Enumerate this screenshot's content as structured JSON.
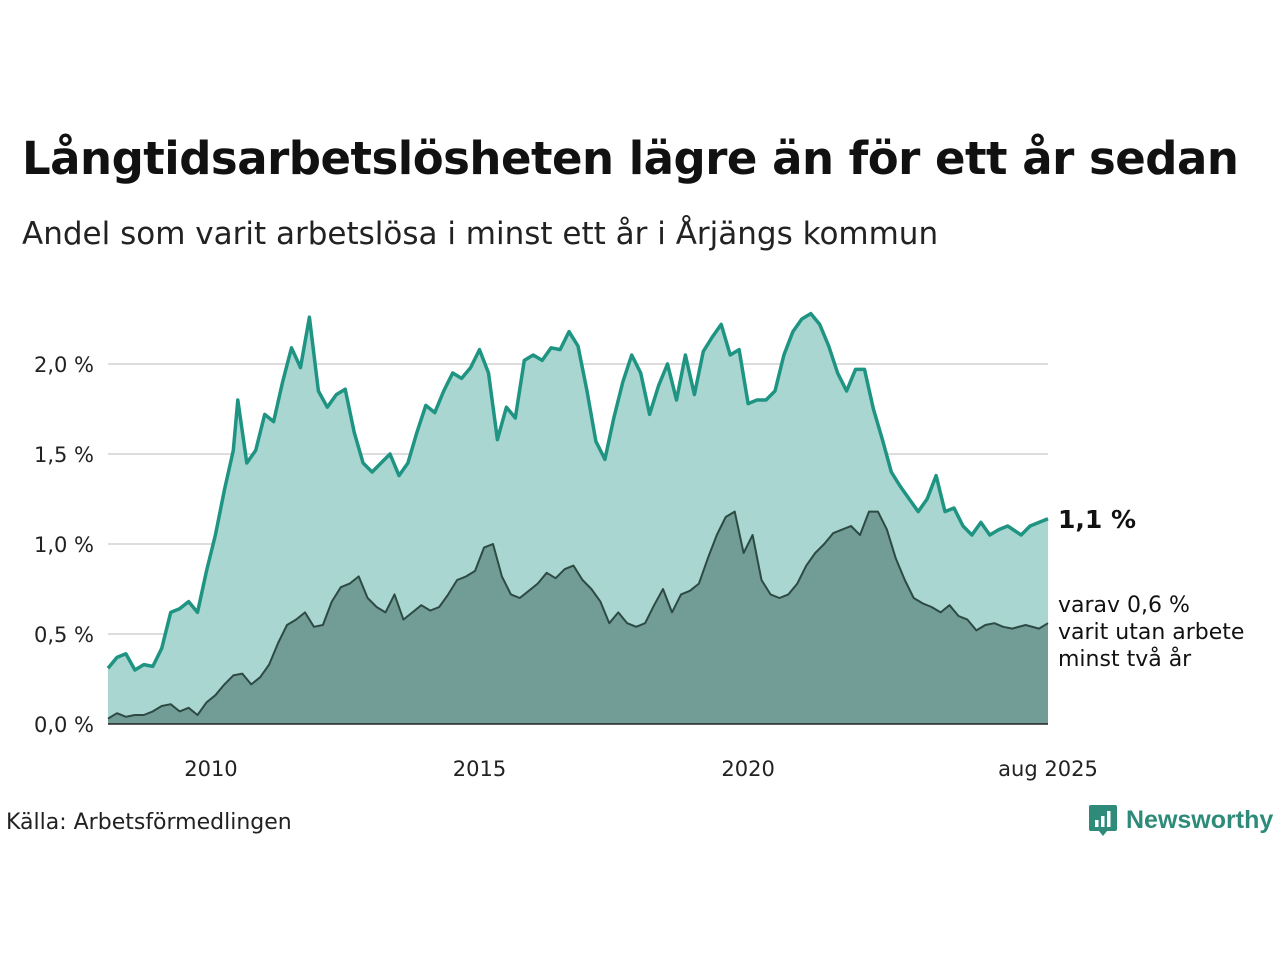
{
  "title": "Långtidsarbetslösheten lägre än för ett år sedan",
  "subtitle": "Andel som varit arbetslösa i minst ett år i Årjängs kommun",
  "source": "Källa: Arbetsförmedlingen",
  "logo_text": "Newsworthy",
  "colors": {
    "long_term_line": "#1f9483",
    "long_term_fill": "#a4d4ce",
    "two_year_line": "#2d4a43",
    "two_year_fill": "#6f9a94",
    "grid": "#dddddd",
    "brand": "#2e8b7a"
  },
  "chart_data": {
    "type": "area",
    "x_start": "2008-02",
    "x_end": "2025-08",
    "ylim": [
      0,
      2.4
    ],
    "y_ticks": [
      {
        "value": 0.0,
        "label": "0,0 %"
      },
      {
        "value": 0.5,
        "label": "0,5 %"
      },
      {
        "value": 1.0,
        "label": "1,0 %"
      },
      {
        "value": 1.5,
        "label": "1,5 %"
      },
      {
        "value": 2.0,
        "label": "2,0 %"
      }
    ],
    "x_ticks": [
      {
        "date": "2010-01",
        "label": "2010"
      },
      {
        "date": "2015-01",
        "label": "2015"
      },
      {
        "date": "2020-01",
        "label": "2020"
      },
      {
        "date": "2025-08",
        "label": "aug 2025"
      }
    ],
    "grid": true,
    "series": [
      {
        "points": [
          [
            "2008-02",
            0.31
          ],
          [
            "2008-04",
            0.37
          ],
          [
            "2008-06",
            0.39
          ],
          [
            "2008-08",
            0.3
          ],
          [
            "2008-10",
            0.33
          ],
          [
            "2008-12",
            0.32
          ],
          [
            "2009-02",
            0.42
          ],
          [
            "2009-04",
            0.62
          ],
          [
            "2009-06",
            0.64
          ],
          [
            "2009-08",
            0.68
          ],
          [
            "2009-10",
            0.62
          ],
          [
            "2009-12",
            0.85
          ],
          [
            "2010-02",
            1.05
          ],
          [
            "2010-04",
            1.3
          ],
          [
            "2010-06",
            1.52
          ],
          [
            "2010-07",
            1.8
          ],
          [
            "2010-09",
            1.45
          ],
          [
            "2010-11",
            1.52
          ],
          [
            "2011-01",
            1.72
          ],
          [
            "2011-03",
            1.68
          ],
          [
            "2011-05",
            1.9
          ],
          [
            "2011-07",
            2.09
          ],
          [
            "2011-09",
            1.98
          ],
          [
            "2011-11",
            2.26
          ],
          [
            "2012-01",
            1.85
          ],
          [
            "2012-03",
            1.76
          ],
          [
            "2012-05",
            1.83
          ],
          [
            "2012-07",
            1.86
          ],
          [
            "2012-09",
            1.62
          ],
          [
            "2012-11",
            1.45
          ],
          [
            "2013-01",
            1.4
          ],
          [
            "2013-03",
            1.45
          ],
          [
            "2013-05",
            1.5
          ],
          [
            "2013-07",
            1.38
          ],
          [
            "2013-09",
            1.45
          ],
          [
            "2013-11",
            1.62
          ],
          [
            "2014-01",
            1.77
          ],
          [
            "2014-03",
            1.73
          ],
          [
            "2014-05",
            1.85
          ],
          [
            "2014-07",
            1.95
          ],
          [
            "2014-09",
            1.92
          ],
          [
            "2014-11",
            1.98
          ],
          [
            "2015-01",
            2.08
          ],
          [
            "2015-03",
            1.95
          ],
          [
            "2015-05",
            1.58
          ],
          [
            "2015-07",
            1.76
          ],
          [
            "2015-09",
            1.7
          ],
          [
            "2015-11",
            2.02
          ],
          [
            "2016-01",
            2.05
          ],
          [
            "2016-03",
            2.02
          ],
          [
            "2016-05",
            2.09
          ],
          [
            "2016-07",
            2.08
          ],
          [
            "2016-09",
            2.18
          ],
          [
            "2016-11",
            2.1
          ],
          [
            "2017-01",
            1.85
          ],
          [
            "2017-03",
            1.57
          ],
          [
            "2017-05",
            1.47
          ],
          [
            "2017-07",
            1.7
          ],
          [
            "2017-09",
            1.9
          ],
          [
            "2017-11",
            2.05
          ],
          [
            "2018-01",
            1.95
          ],
          [
            "2018-03",
            1.72
          ],
          [
            "2018-05",
            1.88
          ],
          [
            "2018-07",
            2.0
          ],
          [
            "2018-09",
            1.8
          ],
          [
            "2018-11",
            2.05
          ],
          [
            "2019-01",
            1.83
          ],
          [
            "2019-03",
            2.07
          ],
          [
            "2019-05",
            2.15
          ],
          [
            "2019-07",
            2.22
          ],
          [
            "2019-09",
            2.05
          ],
          [
            "2019-11",
            2.08
          ],
          [
            "2020-01",
            1.78
          ],
          [
            "2020-03",
            1.8
          ],
          [
            "2020-05",
            1.8
          ],
          [
            "2020-07",
            1.85
          ],
          [
            "2020-09",
            2.05
          ],
          [
            "2020-11",
            2.18
          ],
          [
            "2021-01",
            2.25
          ],
          [
            "2021-03",
            2.28
          ],
          [
            "2021-05",
            2.22
          ],
          [
            "2021-07",
            2.1
          ],
          [
            "2021-09",
            1.95
          ],
          [
            "2021-11",
            1.85
          ],
          [
            "2022-01",
            1.97
          ],
          [
            "2022-03",
            1.97
          ],
          [
            "2022-05",
            1.75
          ],
          [
            "2022-07",
            1.58
          ],
          [
            "2022-09",
            1.4
          ],
          [
            "2022-11",
            1.32
          ],
          [
            "2023-01",
            1.25
          ],
          [
            "2023-03",
            1.18
          ],
          [
            "2023-05",
            1.25
          ],
          [
            "2023-07",
            1.38
          ],
          [
            "2023-09",
            1.18
          ],
          [
            "2023-11",
            1.2
          ],
          [
            "2024-01",
            1.1
          ],
          [
            "2024-03",
            1.05
          ],
          [
            "2024-05",
            1.12
          ],
          [
            "2024-07",
            1.05
          ],
          [
            "2024-09",
            1.08
          ],
          [
            "2024-11",
            1.1
          ],
          [
            "2025-02",
            1.05
          ],
          [
            "2025-04",
            1.1
          ],
          [
            "2025-06",
            1.12
          ],
          [
            "2025-08",
            1.14
          ]
        ]
      },
      {
        "points": [
          [
            "2008-02",
            0.03
          ],
          [
            "2008-04",
            0.06
          ],
          [
            "2008-06",
            0.04
          ],
          [
            "2008-08",
            0.05
          ],
          [
            "2008-10",
            0.05
          ],
          [
            "2008-12",
            0.07
          ],
          [
            "2009-02",
            0.1
          ],
          [
            "2009-04",
            0.11
          ],
          [
            "2009-06",
            0.07
          ],
          [
            "2009-08",
            0.09
          ],
          [
            "2009-10",
            0.05
          ],
          [
            "2009-12",
            0.12
          ],
          [
            "2010-02",
            0.16
          ],
          [
            "2010-04",
            0.22
          ],
          [
            "2010-06",
            0.27
          ],
          [
            "2010-08",
            0.28
          ],
          [
            "2010-10",
            0.22
          ],
          [
            "2010-12",
            0.26
          ],
          [
            "2011-02",
            0.33
          ],
          [
            "2011-04",
            0.45
          ],
          [
            "2011-06",
            0.55
          ],
          [
            "2011-08",
            0.58
          ],
          [
            "2011-10",
            0.62
          ],
          [
            "2011-12",
            0.54
          ],
          [
            "2012-02",
            0.55
          ],
          [
            "2012-04",
            0.68
          ],
          [
            "2012-06",
            0.76
          ],
          [
            "2012-08",
            0.78
          ],
          [
            "2012-10",
            0.82
          ],
          [
            "2012-12",
            0.7
          ],
          [
            "2013-02",
            0.65
          ],
          [
            "2013-04",
            0.62
          ],
          [
            "2013-06",
            0.72
          ],
          [
            "2013-08",
            0.58
          ],
          [
            "2013-10",
            0.62
          ],
          [
            "2013-12",
            0.66
          ],
          [
            "2014-02",
            0.63
          ],
          [
            "2014-04",
            0.65
          ],
          [
            "2014-06",
            0.72
          ],
          [
            "2014-08",
            0.8
          ],
          [
            "2014-10",
            0.82
          ],
          [
            "2014-12",
            0.85
          ],
          [
            "2015-02",
            0.98
          ],
          [
            "2015-04",
            1.0
          ],
          [
            "2015-06",
            0.82
          ],
          [
            "2015-08",
            0.72
          ],
          [
            "2015-10",
            0.7
          ],
          [
            "2015-12",
            0.74
          ],
          [
            "2016-02",
            0.78
          ],
          [
            "2016-04",
            0.84
          ],
          [
            "2016-06",
            0.81
          ],
          [
            "2016-08",
            0.86
          ],
          [
            "2016-10",
            0.88
          ],
          [
            "2016-12",
            0.8
          ],
          [
            "2017-02",
            0.75
          ],
          [
            "2017-04",
            0.68
          ],
          [
            "2017-06",
            0.56
          ],
          [
            "2017-08",
            0.62
          ],
          [
            "2017-10",
            0.56
          ],
          [
            "2017-12",
            0.54
          ],
          [
            "2018-02",
            0.56
          ],
          [
            "2018-04",
            0.66
          ],
          [
            "2018-06",
            0.75
          ],
          [
            "2018-08",
            0.62
          ],
          [
            "2018-10",
            0.72
          ],
          [
            "2018-12",
            0.74
          ],
          [
            "2019-02",
            0.78
          ],
          [
            "2019-04",
            0.92
          ],
          [
            "2019-06",
            1.05
          ],
          [
            "2019-08",
            1.15
          ],
          [
            "2019-10",
            1.18
          ],
          [
            "2019-12",
            0.95
          ],
          [
            "2020-02",
            1.05
          ],
          [
            "2020-04",
            0.8
          ],
          [
            "2020-06",
            0.72
          ],
          [
            "2020-08",
            0.7
          ],
          [
            "2020-10",
            0.72
          ],
          [
            "2020-12",
            0.78
          ],
          [
            "2021-02",
            0.88
          ],
          [
            "2021-04",
            0.95
          ],
          [
            "2021-06",
            1.0
          ],
          [
            "2021-08",
            1.06
          ],
          [
            "2021-10",
            1.08
          ],
          [
            "2021-12",
            1.1
          ],
          [
            "2022-02",
            1.05
          ],
          [
            "2022-04",
            1.18
          ],
          [
            "2022-06",
            1.18
          ],
          [
            "2022-08",
            1.08
          ],
          [
            "2022-10",
            0.92
          ],
          [
            "2022-12",
            0.8
          ],
          [
            "2023-02",
            0.7
          ],
          [
            "2023-04",
            0.67
          ],
          [
            "2023-06",
            0.65
          ],
          [
            "2023-08",
            0.62
          ],
          [
            "2023-10",
            0.66
          ],
          [
            "2023-12",
            0.6
          ],
          [
            "2024-02",
            0.58
          ],
          [
            "2024-04",
            0.52
          ],
          [
            "2024-06",
            0.55
          ],
          [
            "2024-08",
            0.56
          ],
          [
            "2024-10",
            0.54
          ],
          [
            "2024-12",
            0.53
          ],
          [
            "2025-03",
            0.55
          ],
          [
            "2025-06",
            0.53
          ],
          [
            "2025-08",
            0.56
          ]
        ]
      }
    ],
    "end_labels": {
      "long_term": "1,1 %",
      "two_year_lines": [
        "varav 0,6 %",
        "varit utan arbete",
        "minst två år"
      ]
    }
  }
}
